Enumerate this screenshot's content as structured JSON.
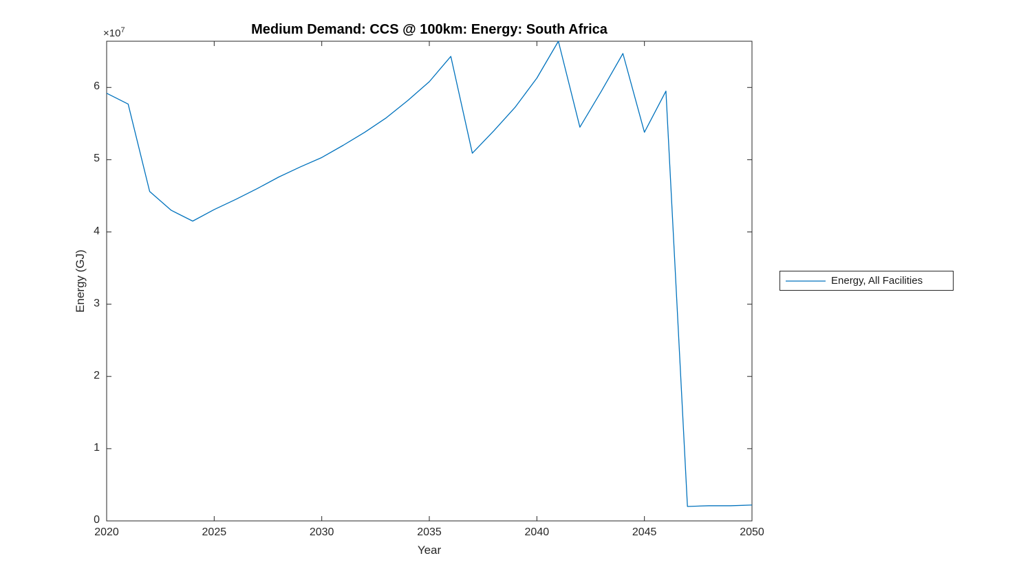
{
  "chart_data": {
    "type": "line",
    "title": "Medium Demand: CCS @ 100km: Energy: South Africa",
    "xlabel": "Year",
    "ylabel": "Energy (GJ)",
    "y_multiplier": {
      "base": "×10",
      "exp": "7"
    },
    "y_unit_note": "values are in units of 10^7 GJ",
    "xlim": [
      2020,
      2050
    ],
    "ylim": [
      0,
      6.64
    ],
    "x_ticks": [
      2020,
      2025,
      2030,
      2035,
      2040,
      2045,
      2050
    ],
    "y_ticks": [
      0,
      1,
      2,
      3,
      4,
      5,
      6
    ],
    "grid": false,
    "axis_color": "#262626",
    "background_color": "#ffffff",
    "series": [
      {
        "name": "Energy, All Facilities",
        "color": "#0072BD",
        "x": [
          2020,
          2021,
          2022,
          2023,
          2024,
          2025,
          2026,
          2027,
          2028,
          2029,
          2030,
          2031,
          2032,
          2033,
          2034,
          2035,
          2036,
          2037,
          2038,
          2039,
          2040,
          2041,
          2042,
          2043,
          2044,
          2045,
          2046,
          2047,
          2048,
          2049,
          2050
        ],
        "values": [
          5.92,
          5.77,
          4.56,
          4.3,
          4.15,
          4.31,
          4.45,
          4.6,
          4.76,
          4.9,
          5.03,
          5.2,
          5.38,
          5.58,
          5.82,
          6.08,
          6.43,
          5.09,
          5.4,
          5.73,
          6.13,
          6.64,
          5.45,
          5.95,
          6.47,
          5.38,
          5.95,
          0.2,
          0.21,
          0.21,
          0.22
        ]
      }
    ],
    "legend": {
      "position": "right-outside",
      "entries": [
        "Energy, All Facilities"
      ]
    }
  }
}
